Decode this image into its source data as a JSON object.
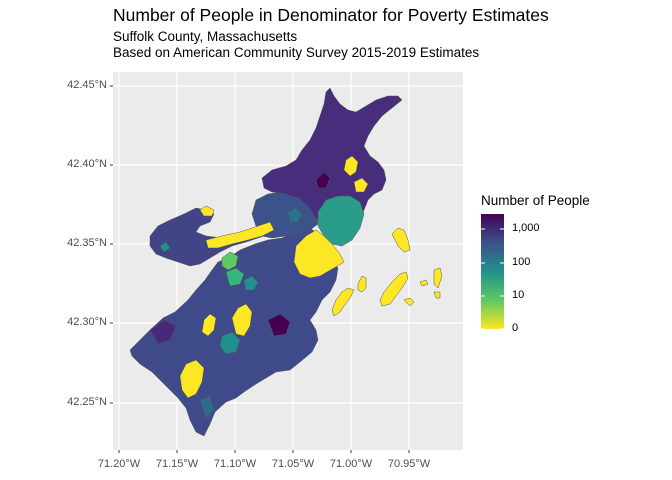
{
  "title": "Number of People in Denominator for Poverty Estimates",
  "subtitle_line1": "Suffolk County, Massachusetts",
  "subtitle_line2": "Based on American Community Survey 2015-2019 Estimates",
  "y_ticks": [
    "42.45°N",
    "42.40°N",
    "42.35°N",
    "42.30°N",
    "42.25°N"
  ],
  "x_ticks": [
    "71.20°W",
    "71.15°W",
    "71.10°W",
    "71.05°W",
    "71.00°W",
    "70.95°W"
  ],
  "legend": {
    "title": "Number of People",
    "labels": [
      "1,000",
      "100",
      "10",
      "0"
    ],
    "colors": [
      "#440154",
      "#3b528b",
      "#21908c",
      "#5ec962",
      "#fde725"
    ]
  },
  "colors": {
    "panel_background": "#ebebeb",
    "gridline": "#ffffff",
    "region_outline": "#555555"
  }
}
